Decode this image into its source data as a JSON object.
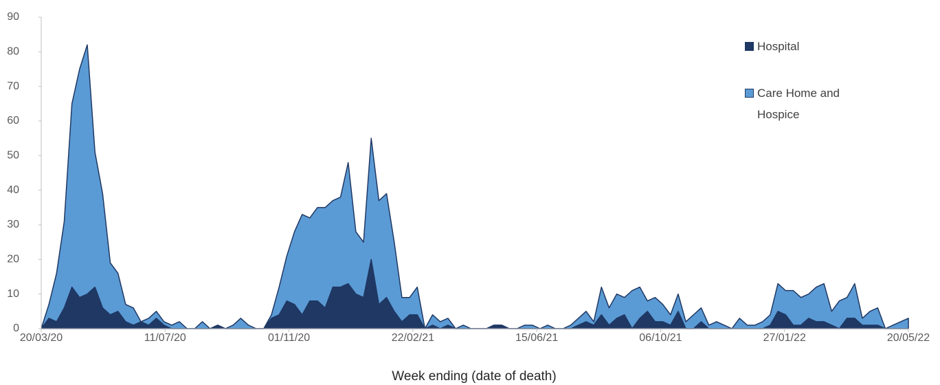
{
  "chart_data": {
    "type": "stacked-area",
    "x_label": "Week ending (date of death)",
    "x": [
      "20/03/20",
      "27/03/20",
      "03/04/20",
      "10/04/20",
      "17/04/20",
      "24/04/20",
      "01/05/20",
      "08/05/20",
      "15/05/20",
      "22/05/20",
      "29/05/20",
      "05/06/20",
      "12/06/20",
      "19/06/20",
      "26/06/20",
      "03/07/20",
      "10/07/20",
      "17/07/20",
      "24/07/20",
      "31/07/20",
      "07/08/20",
      "14/08/20",
      "21/08/20",
      "28/08/20",
      "04/09/20",
      "11/09/20",
      "18/09/20",
      "25/09/20",
      "02/10/20",
      "09/10/20",
      "16/10/20",
      "23/10/20",
      "30/10/20",
      "06/11/20",
      "13/11/20",
      "20/11/20",
      "27/11/20",
      "04/12/20",
      "11/12/20",
      "18/12/20",
      "25/12/20",
      "01/01/21",
      "08/01/21",
      "15/01/21",
      "22/01/21",
      "29/01/21",
      "05/02/21",
      "12/02/21",
      "19/02/21",
      "26/02/21",
      "05/03/21",
      "12/03/21",
      "19/03/21",
      "26/03/21",
      "02/04/21",
      "09/04/21",
      "16/04/21",
      "23/04/21",
      "30/04/21",
      "07/05/21",
      "14/05/21",
      "21/05/21",
      "28/05/21",
      "04/06/21",
      "11/06/21",
      "18/06/21",
      "25/06/21",
      "02/07/21",
      "09/07/21",
      "16/07/21",
      "23/07/21",
      "30/07/21",
      "06/08/21",
      "13/08/21",
      "20/08/21",
      "27/08/21",
      "03/09/21",
      "10/09/21",
      "17/09/21",
      "24/09/21",
      "01/10/21",
      "08/10/21",
      "15/10/21",
      "22/10/21",
      "29/10/21",
      "05/11/21",
      "12/11/21",
      "19/11/21",
      "26/11/21",
      "03/12/21",
      "10/12/21",
      "17/12/21",
      "24/12/21",
      "31/12/21",
      "07/01/22",
      "14/01/22",
      "21/01/22",
      "28/01/22",
      "04/02/22",
      "11/02/22",
      "18/02/22",
      "25/02/22",
      "04/03/22",
      "11/03/22",
      "18/03/22",
      "25/03/22",
      "01/04/22",
      "08/04/22",
      "15/04/22",
      "22/04/22",
      "29/04/22",
      "06/05/22",
      "13/05/22",
      "20/05/22"
    ],
    "xlim": [
      "20/03/20",
      "20/05/22"
    ],
    "xticks": [
      "20/03/20",
      "11/07/20",
      "01/11/20",
      "22/02/21",
      "15/06/21",
      "06/10/21",
      "27/01/22",
      "20/05/22"
    ],
    "ylim": [
      0,
      90
    ],
    "yticks": [
      0,
      10,
      20,
      30,
      40,
      50,
      60,
      70,
      80,
      90
    ],
    "outline_color": "#1f3864",
    "series": [
      {
        "name": "Hospital",
        "color": "#1f3864",
        "values": [
          0,
          3,
          2,
          6,
          12,
          9,
          10,
          12,
          6,
          4,
          5,
          2,
          1,
          2,
          1,
          3,
          1,
          0,
          0,
          0,
          0,
          0,
          0,
          1,
          0,
          0,
          0,
          0,
          0,
          0,
          3,
          4,
          8,
          7,
          4,
          8,
          8,
          6,
          12,
          12,
          13,
          10,
          9,
          20,
          7,
          9,
          5,
          2,
          4,
          4,
          0,
          1,
          0,
          1,
          0,
          0,
          0,
          0,
          0,
          1,
          1,
          0,
          0,
          0,
          0,
          0,
          0,
          0,
          0,
          0,
          1,
          2,
          1,
          4,
          1,
          3,
          4,
          0,
          3,
          5,
          2,
          2,
          1,
          5,
          0,
          0,
          2,
          0,
          0,
          0,
          0,
          0,
          0,
          0,
          0,
          1,
          5,
          4,
          1,
          1,
          3,
          2,
          2,
          1,
          0,
          3,
          3,
          1,
          1,
          1,
          0,
          0,
          0,
          0
        ]
      },
      {
        "name": "Care Home and Hospice",
        "color": "#5b9bd5",
        "values": [
          0,
          4,
          14,
          25,
          53,
          66,
          72,
          39,
          33,
          15,
          11,
          5,
          5,
          0,
          2,
          2,
          1,
          1,
          2,
          0,
          0,
          2,
          0,
          0,
          0,
          1,
          3,
          1,
          0,
          0,
          1,
          8,
          13,
          21,
          29,
          24,
          27,
          29,
          25,
          26,
          35,
          18,
          16,
          35,
          30,
          30,
          20,
          7,
          5,
          8,
          0,
          3,
          2,
          2,
          0,
          1,
          0,
          0,
          0,
          0,
          0,
          0,
          0,
          1,
          1,
          0,
          1,
          0,
          0,
          1,
          2,
          3,
          1,
          8,
          5,
          7,
          5,
          11,
          9,
          3,
          7,
          5,
          3,
          5,
          2,
          4,
          4,
          1,
          2,
          1,
          0,
          3,
          1,
          1,
          2,
          3,
          8,
          7,
          10,
          8,
          7,
          10,
          11,
          4,
          8,
          6,
          10,
          2,
          4,
          5,
          0,
          1,
          2,
          3
        ]
      }
    ]
  }
}
